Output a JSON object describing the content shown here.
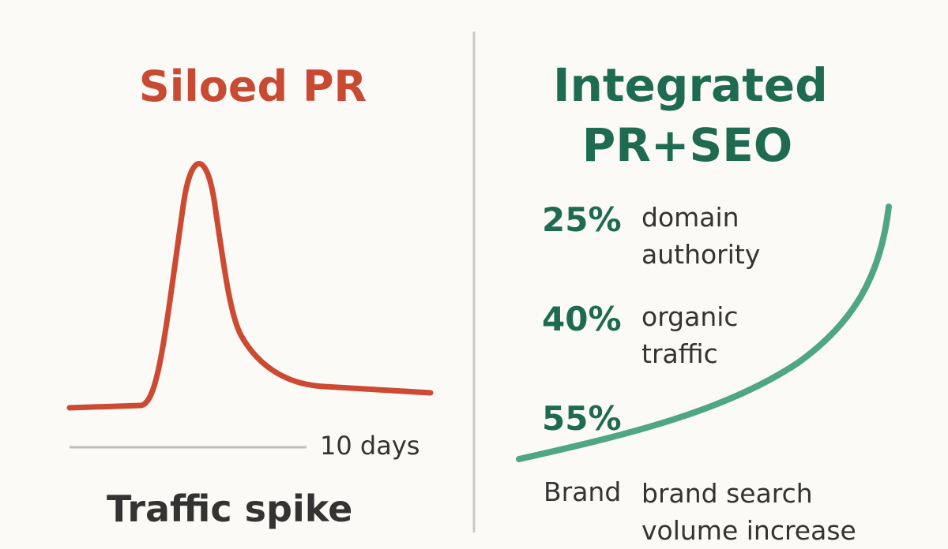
{
  "left": {
    "title": "Siloed PR",
    "axis_label": "10 days",
    "caption": "Traffic spike"
  },
  "right": {
    "title": "Integrated PR+SEO",
    "stats": [
      {
        "value": "25%",
        "label": "domain authority"
      },
      {
        "value": "40%",
        "label": "organic traffic"
      },
      {
        "value": "55%",
        "prefix": "Brand",
        "label": "brand search volume increase"
      }
    ]
  }
}
